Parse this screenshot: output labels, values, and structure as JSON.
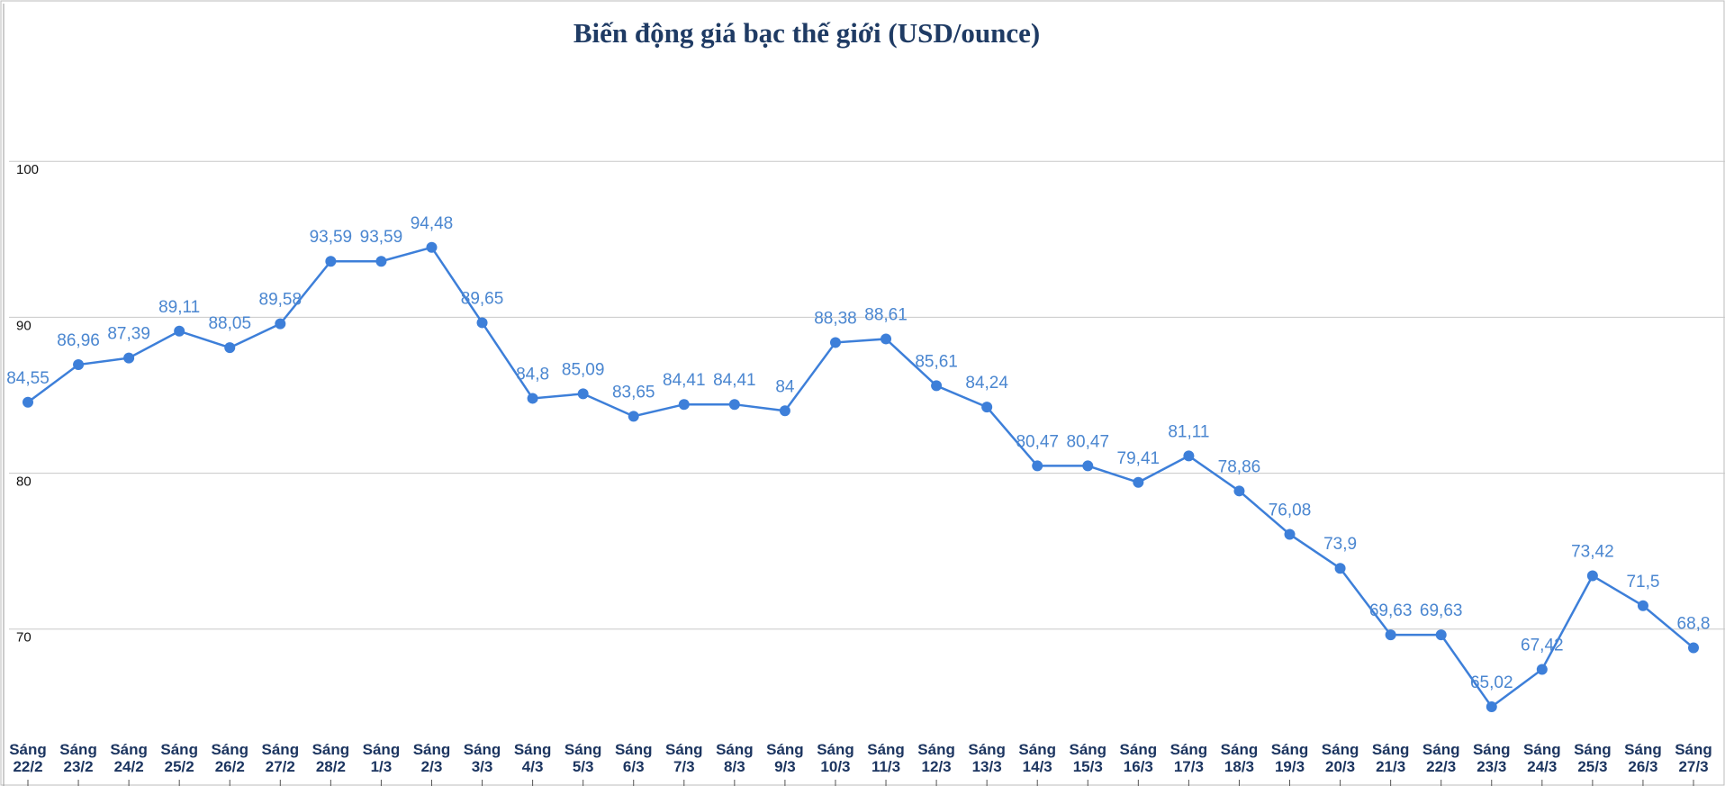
{
  "chart_data": {
    "type": "line",
    "title": "Biến động giá bạc thế giới (USD/ounce)",
    "categories": [
      "Sáng 22/2",
      "Sáng 23/2",
      "Sáng 24/2",
      "Sáng 25/2",
      "Sáng 26/2",
      "Sáng 27/2",
      "Sáng 28/2",
      "Sáng 1/3",
      "Sáng 2/3",
      "Sáng 3/3",
      "Sáng 4/3",
      "Sáng 5/3",
      "Sáng 6/3",
      "Sáng 7/3",
      "Sáng 8/3",
      "Sáng 9/3",
      "Sáng 10/3",
      "Sáng 11/3",
      "Sáng 12/3",
      "Sáng 13/3",
      "Sáng 14/3",
      "Sáng 15/3",
      "Sáng 16/3",
      "Sáng 17/3",
      "Sáng 18/3",
      "Sáng 19/3",
      "Sáng 20/3",
      "Sáng 21/3",
      "Sáng 22/3",
      "Sáng 23/3",
      "Sáng 24/3",
      "Sáng 25/3",
      "Sáng 26/3",
      "Sáng 27/3"
    ],
    "values": [
      84.55,
      86.96,
      87.39,
      89.11,
      88.05,
      89.58,
      93.59,
      93.59,
      94.48,
      89.65,
      84.8,
      85.09,
      83.65,
      84.41,
      84.41,
      84,
      88.38,
      88.61,
      85.61,
      84.24,
      80.47,
      80.47,
      79.41,
      81.11,
      78.86,
      76.08,
      73.9,
      69.63,
      69.63,
      65.02,
      67.42,
      73.42,
      71.5,
      68.8
    ],
    "value_labels": [
      "84,55",
      "86,96",
      "87,39",
      "89,11",
      "88,05",
      "89,58",
      "93,59",
      "93,59",
      "94,48",
      "89,65",
      "84,8",
      "85,09",
      "83,65",
      "84,41",
      "84,41",
      "84",
      "88,38",
      "88,61",
      "85,61",
      "84,24",
      "80,47",
      "80,47",
      "79,41",
      "81,11",
      "78,86",
      "76,08",
      "73,9",
      "69,63",
      "69,63",
      "65,02",
      "67,42",
      "73,42",
      "71,5",
      "68,8"
    ],
    "color": "#3d7fd9",
    "ylim": [
      63,
      110
    ],
    "yticks": [
      70,
      80,
      90,
      100
    ],
    "grid": true
  }
}
